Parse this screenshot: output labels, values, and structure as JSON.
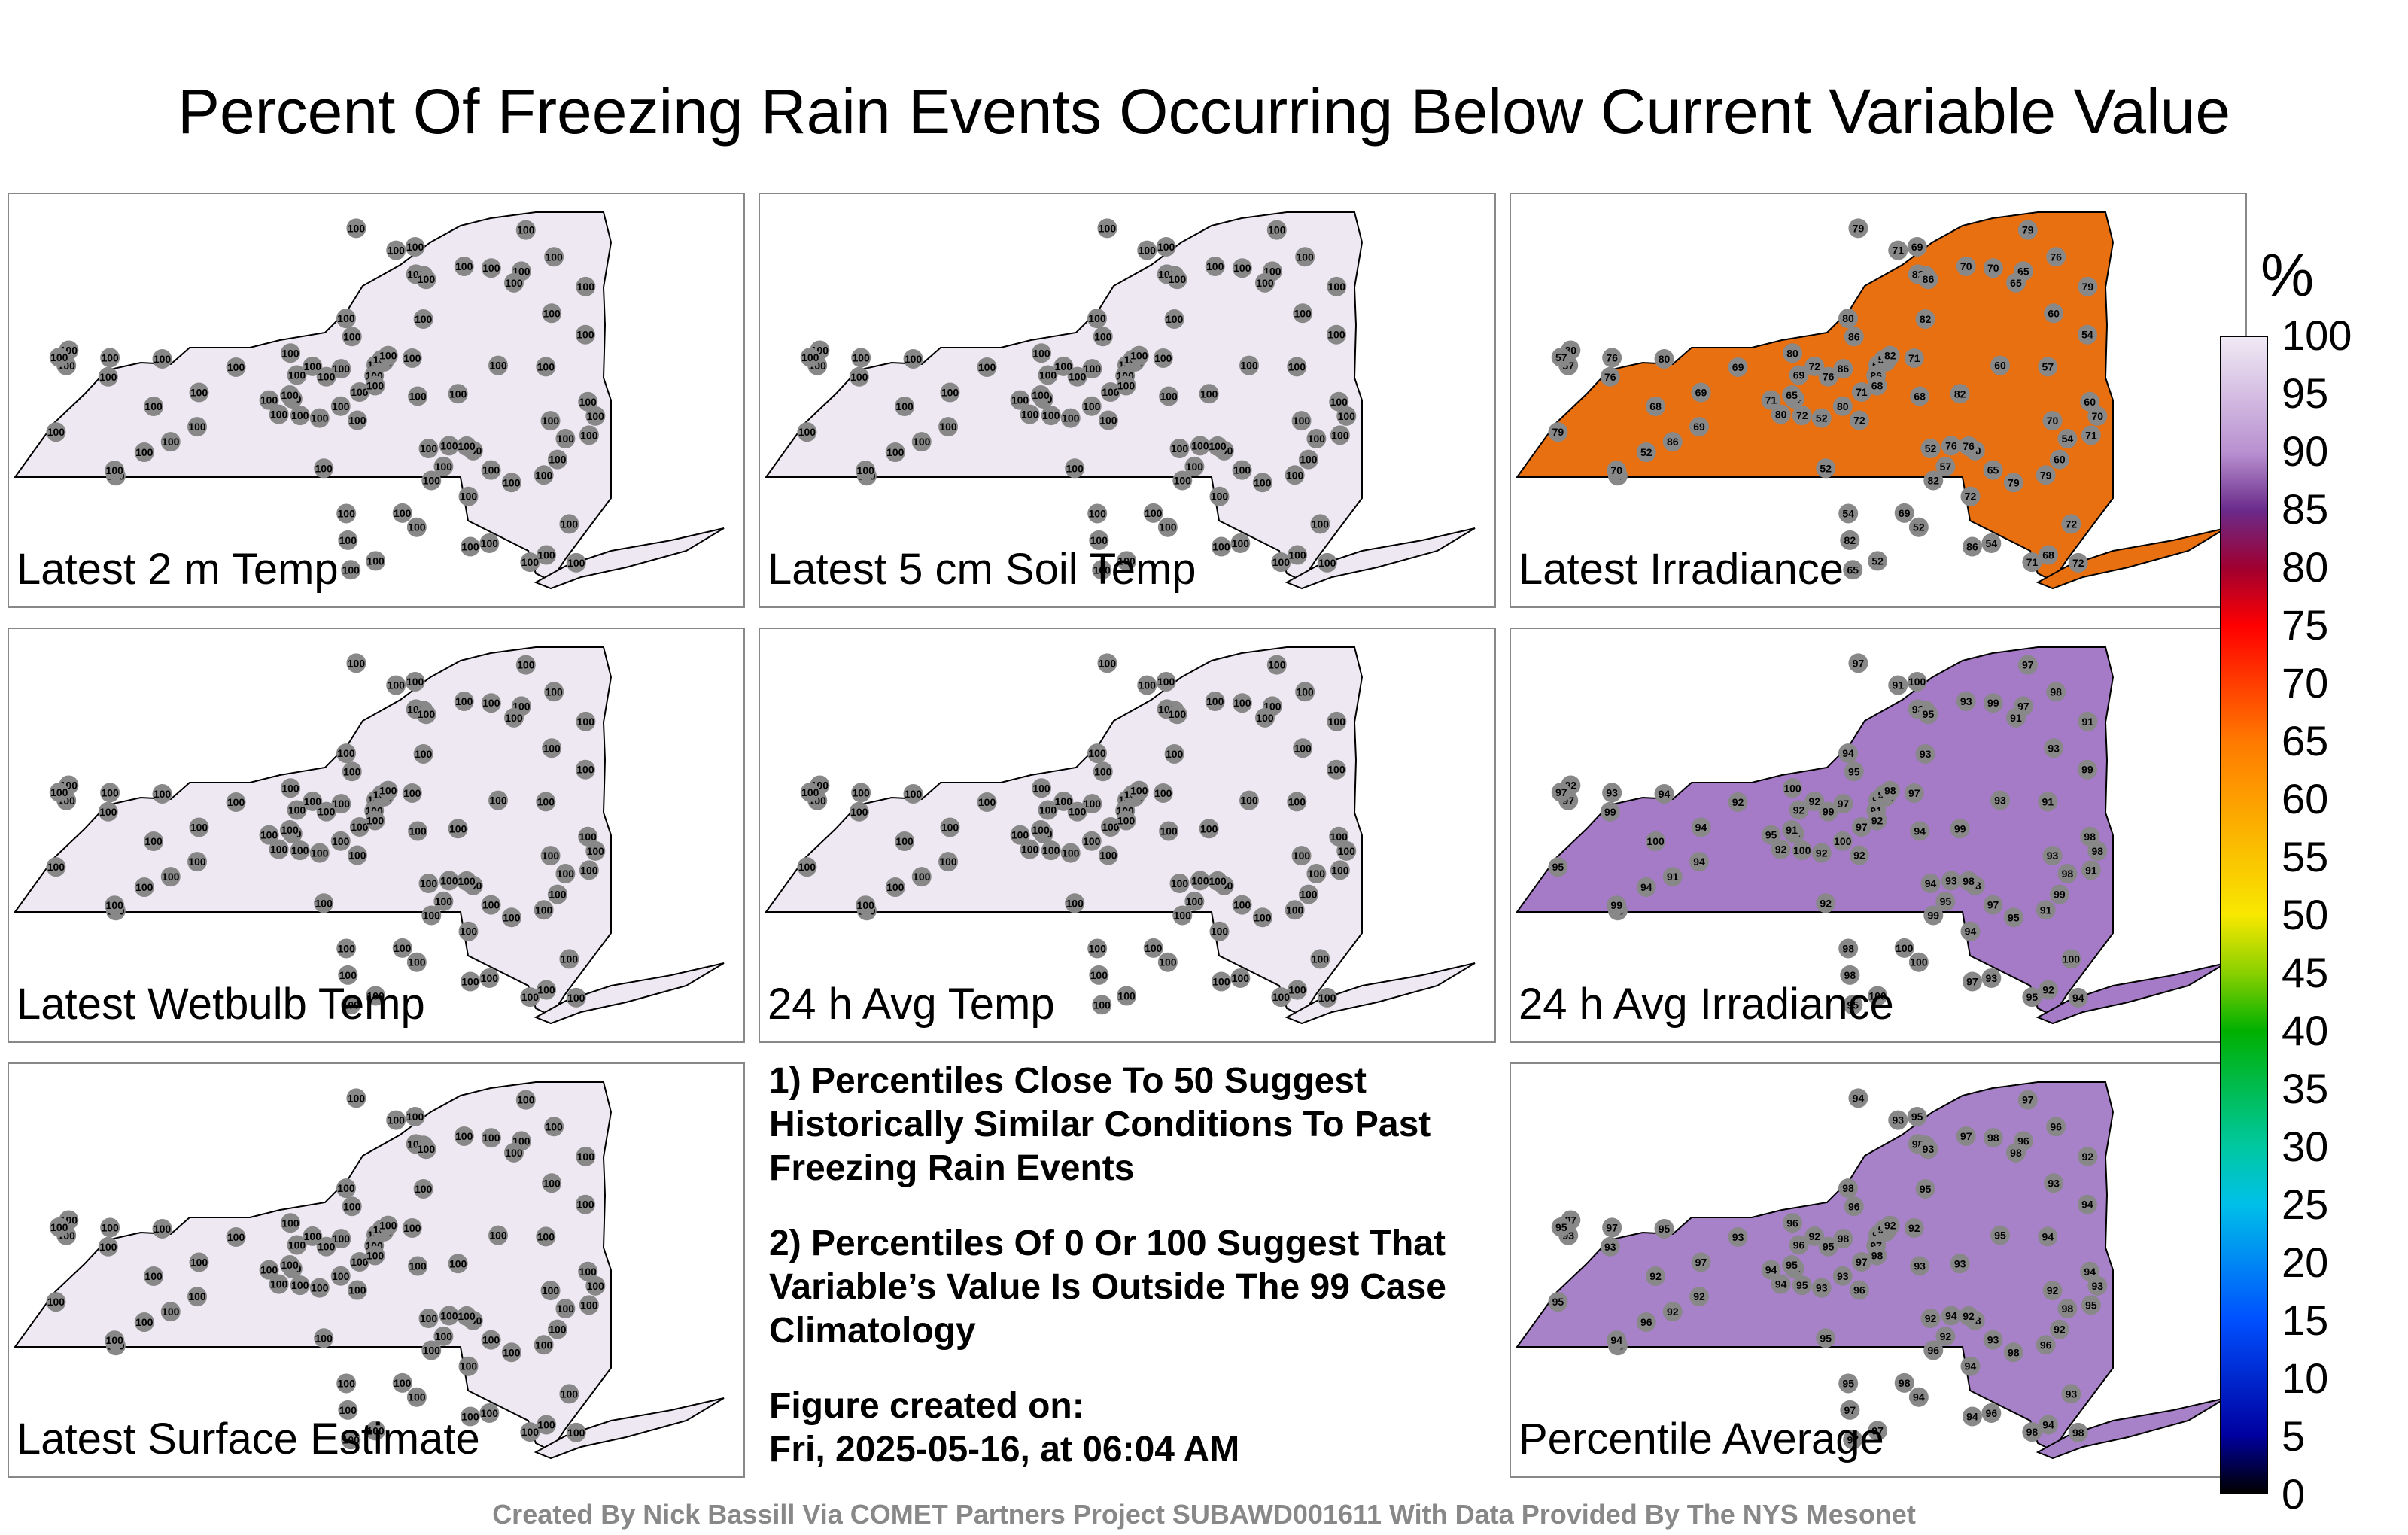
{
  "title": "Percent Of Freezing Rain Events Occurring Below Current Variable Value",
  "panels": [
    {
      "label": "Latest 2 m Temp",
      "fill": "#eee8f2",
      "values": [
        "100"
      ]
    },
    {
      "label": "Latest 5 cm Soil Temp",
      "fill": "#eee8f2",
      "values": [
        "100"
      ]
    },
    {
      "label": "Latest Irradiance",
      "fill": "#e87010",
      "values": [
        "52",
        "54",
        "65",
        "69",
        "70",
        "71",
        "72",
        "76",
        "79",
        "80",
        "82",
        "86",
        "68",
        "60",
        "57"
      ]
    },
    {
      "label": "Latest Wetbulb Temp",
      "fill": "#eee8f2",
      "values": [
        "100"
      ]
    },
    {
      "label": "24 h Avg Temp",
      "fill": "#eee8f2",
      "values": [
        "100"
      ]
    },
    {
      "label": "24 h Avg Irradiance",
      "fill": "#a57ac6",
      "values": [
        "92",
        "93",
        "95",
        "100",
        "98",
        "97",
        "94",
        "99",
        "91"
      ]
    },
    {
      "label": "Latest Surface Estimate",
      "fill": "#eee8f2",
      "values": [
        "100"
      ]
    },
    {
      "label": "Percentile Average",
      "fill": "#a882c8",
      "values": [
        "93",
        "92",
        "94",
        "95",
        "96",
        "97",
        "98"
      ]
    }
  ],
  "notes": {
    "note1": "1) Percentiles Close To 50 Suggest Historically Similar Conditions To Past Freezing Rain Events",
    "note2": "2) Percentiles Of 0 Or 100 Suggest That Variable’s Value Is Outside The 99 Case Climatology",
    "created_label": "Figure created on:",
    "created_value": "Fri, 2025-05-16, at 06:04 AM"
  },
  "colorbar": {
    "unit": "%",
    "ticks": [
      "100",
      "95",
      "90",
      "85",
      "80",
      "75",
      "70",
      "65",
      "60",
      "55",
      "50",
      "45",
      "40",
      "35",
      "30",
      "25",
      "20",
      "15",
      "10",
      "5",
      "0"
    ]
  },
  "footer": "Created By Nick Bassill Via COMET Partners Project SUBAWD001611 With Data Provided By The NYS Mesonet"
}
